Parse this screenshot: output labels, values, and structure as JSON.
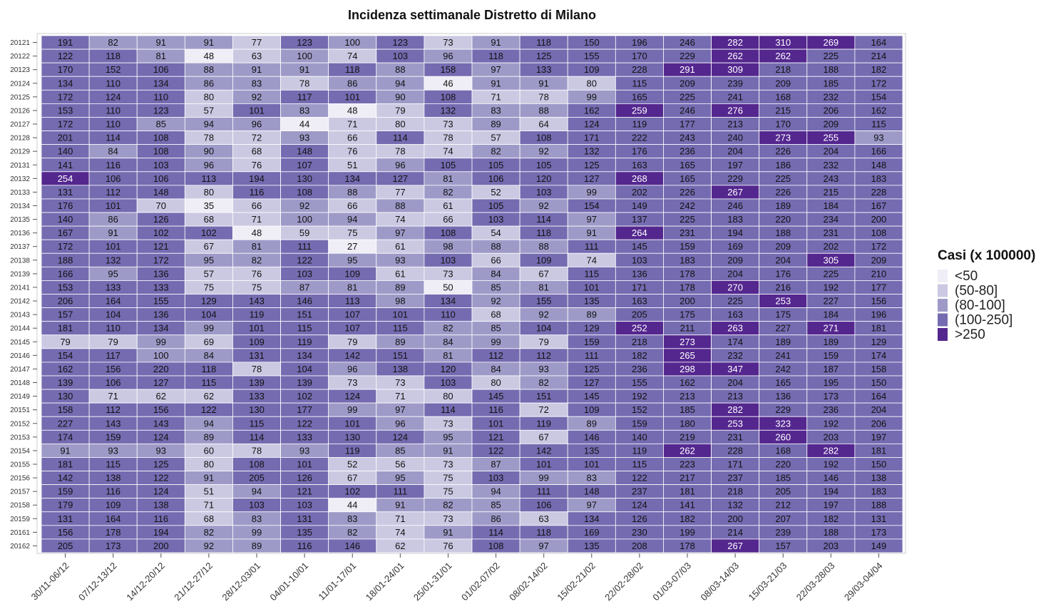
{
  "chart_data": {
    "type": "heatmap",
    "title": "Incidenza settimanale Distretto di Milano",
    "xlabel": "",
    "ylabel": "",
    "x_categories": [
      "30/11-06/12",
      "07/12-13/12",
      "14/12-20/12",
      "21/12-27/12",
      "28/12-03/01",
      "04/01-10/01",
      "11/01-17/01",
      "18/01-24/01",
      "25/01-31/01",
      "01/02-07/02",
      "08/02-14/02",
      "15/02-21/02",
      "22/02-28/02",
      "01/03-07/03",
      "08/03-14/03",
      "15/03-21/03",
      "22/03-28/03",
      "29/03-04/04"
    ],
    "y_categories": [
      "20121",
      "20122",
      "20123",
      "20124",
      "20125",
      "20126",
      "20127",
      "20128",
      "20129",
      "20131",
      "20132",
      "20133",
      "20134",
      "20135",
      "20136",
      "20137",
      "20138",
      "20139",
      "20141",
      "20142",
      "20143",
      "20144",
      "20145",
      "20146",
      "20147",
      "20148",
      "20149",
      "20151",
      "20152",
      "20153",
      "20154",
      "20155",
      "20156",
      "20157",
      "20158",
      "20159",
      "20161",
      "20162"
    ],
    "values": [
      [
        191,
        82,
        91,
        91,
        77,
        123,
        100,
        123,
        73,
        91,
        118,
        150,
        196,
        246,
        282,
        310,
        269,
        164
      ],
      [
        122,
        118,
        81,
        48,
        63,
        100,
        74,
        103,
        96,
        118,
        125,
        155,
        170,
        229,
        262,
        262,
        225,
        214
      ],
      [
        170,
        152,
        106,
        88,
        91,
        91,
        118,
        88,
        158,
        97,
        133,
        109,
        228,
        291,
        309,
        218,
        188,
        182
      ],
      [
        134,
        110,
        134,
        86,
        83,
        78,
        86,
        94,
        46,
        91,
        91,
        80,
        115,
        209,
        239,
        209,
        185,
        172
      ],
      [
        172,
        124,
        110,
        80,
        92,
        117,
        101,
        90,
        108,
        71,
        78,
        99,
        165,
        225,
        241,
        168,
        232,
        154
      ],
      [
        153,
        110,
        123,
        57,
        101,
        83,
        48,
        79,
        132,
        83,
        88,
        162,
        259,
        246,
        276,
        215,
        206,
        162
      ],
      [
        172,
        110,
        85,
        94,
        96,
        44,
        71,
        80,
        73,
        89,
        64,
        124,
        119,
        177,
        213,
        170,
        209,
        115
      ],
      [
        201,
        114,
        108,
        78,
        72,
        93,
        66,
        114,
        78,
        57,
        108,
        171,
        222,
        243,
        240,
        273,
        255,
        93
      ],
      [
        140,
        84,
        108,
        90,
        68,
        148,
        76,
        78,
        74,
        82,
        92,
        132,
        176,
        236,
        204,
        226,
        204,
        166
      ],
      [
        141,
        116,
        103,
        96,
        76,
        107,
        51,
        96,
        105,
        105,
        105,
        125,
        163,
        165,
        197,
        186,
        232,
        148
      ],
      [
        254,
        106,
        106,
        113,
        194,
        130,
        134,
        127,
        81,
        106,
        120,
        127,
        268,
        165,
        229,
        225,
        243,
        183
      ],
      [
        131,
        112,
        148,
        80,
        116,
        108,
        88,
        77,
        82,
        52,
        103,
        99,
        202,
        226,
        267,
        226,
        215,
        228
      ],
      [
        176,
        101,
        70,
        35,
        66,
        92,
        66,
        88,
        61,
        105,
        92,
        154,
        149,
        242,
        246,
        189,
        184,
        167
      ],
      [
        140,
        86,
        126,
        68,
        71,
        100,
        94,
        74,
        66,
        103,
        114,
        97,
        137,
        225,
        183,
        220,
        234,
        200
      ],
      [
        167,
        91,
        102,
        102,
        48,
        59,
        75,
        97,
        108,
        54,
        118,
        91,
        264,
        231,
        194,
        188,
        231,
        108
      ],
      [
        172,
        101,
        121,
        67,
        81,
        111,
        27,
        61,
        98,
        88,
        88,
        111,
        145,
        159,
        169,
        209,
        202,
        172
      ],
      [
        188,
        132,
        172,
        95,
        82,
        122,
        95,
        93,
        103,
        66,
        109,
        74,
        103,
        183,
        209,
        204,
        305,
        209
      ],
      [
        166,
        95,
        136,
        57,
        76,
        103,
        109,
        61,
        73,
        84,
        67,
        115,
        136,
        178,
        204,
        176,
        225,
        210
      ],
      [
        153,
        133,
        133,
        75,
        75,
        87,
        81,
        89,
        50,
        85,
        81,
        101,
        171,
        178,
        270,
        216,
        192,
        177
      ],
      [
        206,
        164,
        155,
        129,
        143,
        146,
        113,
        98,
        134,
        92,
        155,
        135,
        163,
        200,
        225,
        253,
        227,
        156
      ],
      [
        157,
        104,
        136,
        104,
        119,
        151,
        107,
        101,
        110,
        68,
        92,
        89,
        205,
        175,
        163,
        175,
        184,
        196
      ],
      [
        181,
        110,
        134,
        99,
        101,
        115,
        107,
        115,
        82,
        85,
        104,
        129,
        252,
        211,
        263,
        227,
        271,
        181
      ],
      [
        79,
        79,
        99,
        69,
        109,
        119,
        79,
        89,
        84,
        99,
        79,
        159,
        218,
        273,
        174,
        189,
        189,
        129
      ],
      [
        154,
        117,
        100,
        84,
        131,
        134,
        142,
        151,
        81,
        112,
        112,
        111,
        182,
        265,
        232,
        241,
        159,
        174
      ],
      [
        162,
        156,
        220,
        118,
        78,
        104,
        96,
        138,
        120,
        84,
        93,
        125,
        236,
        298,
        347,
        242,
        187,
        158
      ],
      [
        139,
        106,
        127,
        115,
        139,
        139,
        73,
        73,
        103,
        80,
        82,
        127,
        155,
        162,
        204,
        165,
        195,
        150
      ],
      [
        130,
        71,
        62,
        62,
        133,
        102,
        124,
        71,
        80,
        145,
        151,
        145,
        192,
        213,
        213,
        136,
        173,
        164
      ],
      [
        158,
        112,
        156,
        122,
        130,
        177,
        99,
        97,
        114,
        116,
        72,
        109,
        152,
        185,
        282,
        229,
        236,
        204
      ],
      [
        227,
        143,
        143,
        94,
        115,
        122,
        101,
        96,
        73,
        101,
        119,
        89,
        159,
        180,
        253,
        323,
        192,
        206
      ],
      [
        174,
        159,
        124,
        89,
        114,
        133,
        130,
        124,
        95,
        121,
        67,
        146,
        140,
        219,
        231,
        260,
        203,
        197
      ],
      [
        91,
        93,
        93,
        60,
        78,
        93,
        119,
        85,
        91,
        122,
        142,
        135,
        119,
        262,
        228,
        168,
        282,
        181
      ],
      [
        181,
        115,
        125,
        80,
        108,
        101,
        52,
        56,
        73,
        87,
        101,
        101,
        115,
        223,
        171,
        220,
        192,
        150
      ],
      [
        142,
        138,
        122,
        91,
        205,
        126,
        67,
        95,
        75,
        103,
        99,
        83,
        122,
        217,
        237,
        185,
        146,
        138
      ],
      [
        159,
        116,
        124,
        51,
        94,
        121,
        102,
        111,
        75,
        94,
        111,
        148,
        237,
        181,
        218,
        205,
        194,
        183
      ],
      [
        179,
        109,
        138,
        71,
        103,
        103,
        44,
        91,
        82,
        85,
        106,
        97,
        124,
        141,
        132,
        212,
        197,
        188
      ],
      [
        131,
        164,
        116,
        68,
        83,
        131,
        83,
        71,
        73,
        86,
        63,
        134,
        126,
        182,
        200,
        207,
        182,
        131
      ],
      [
        156,
        178,
        194,
        82,
        99,
        135,
        82,
        74,
        91,
        114,
        118,
        169,
        230,
        199,
        214,
        239,
        188,
        173
      ],
      [
        205,
        173,
        200,
        92,
        89,
        116,
        146,
        62,
        76,
        108,
        97,
        135,
        208,
        178,
        267,
        157,
        203,
        149
      ]
    ],
    "bins": [
      {
        "label": "<50",
        "color": "#efedf5"
      },
      {
        "label": "(50-80]",
        "color": "#cbc9e2"
      },
      {
        "label": "(80-100]",
        "color": "#9e9ac8"
      },
      {
        "label": "(100-250]",
        "color": "#756bb1"
      },
      {
        "label": ">250",
        "color": "#54278f"
      }
    ],
    "legend": {
      "title": "Casi (x 100000)",
      "position": "right"
    },
    "grid": false
  }
}
